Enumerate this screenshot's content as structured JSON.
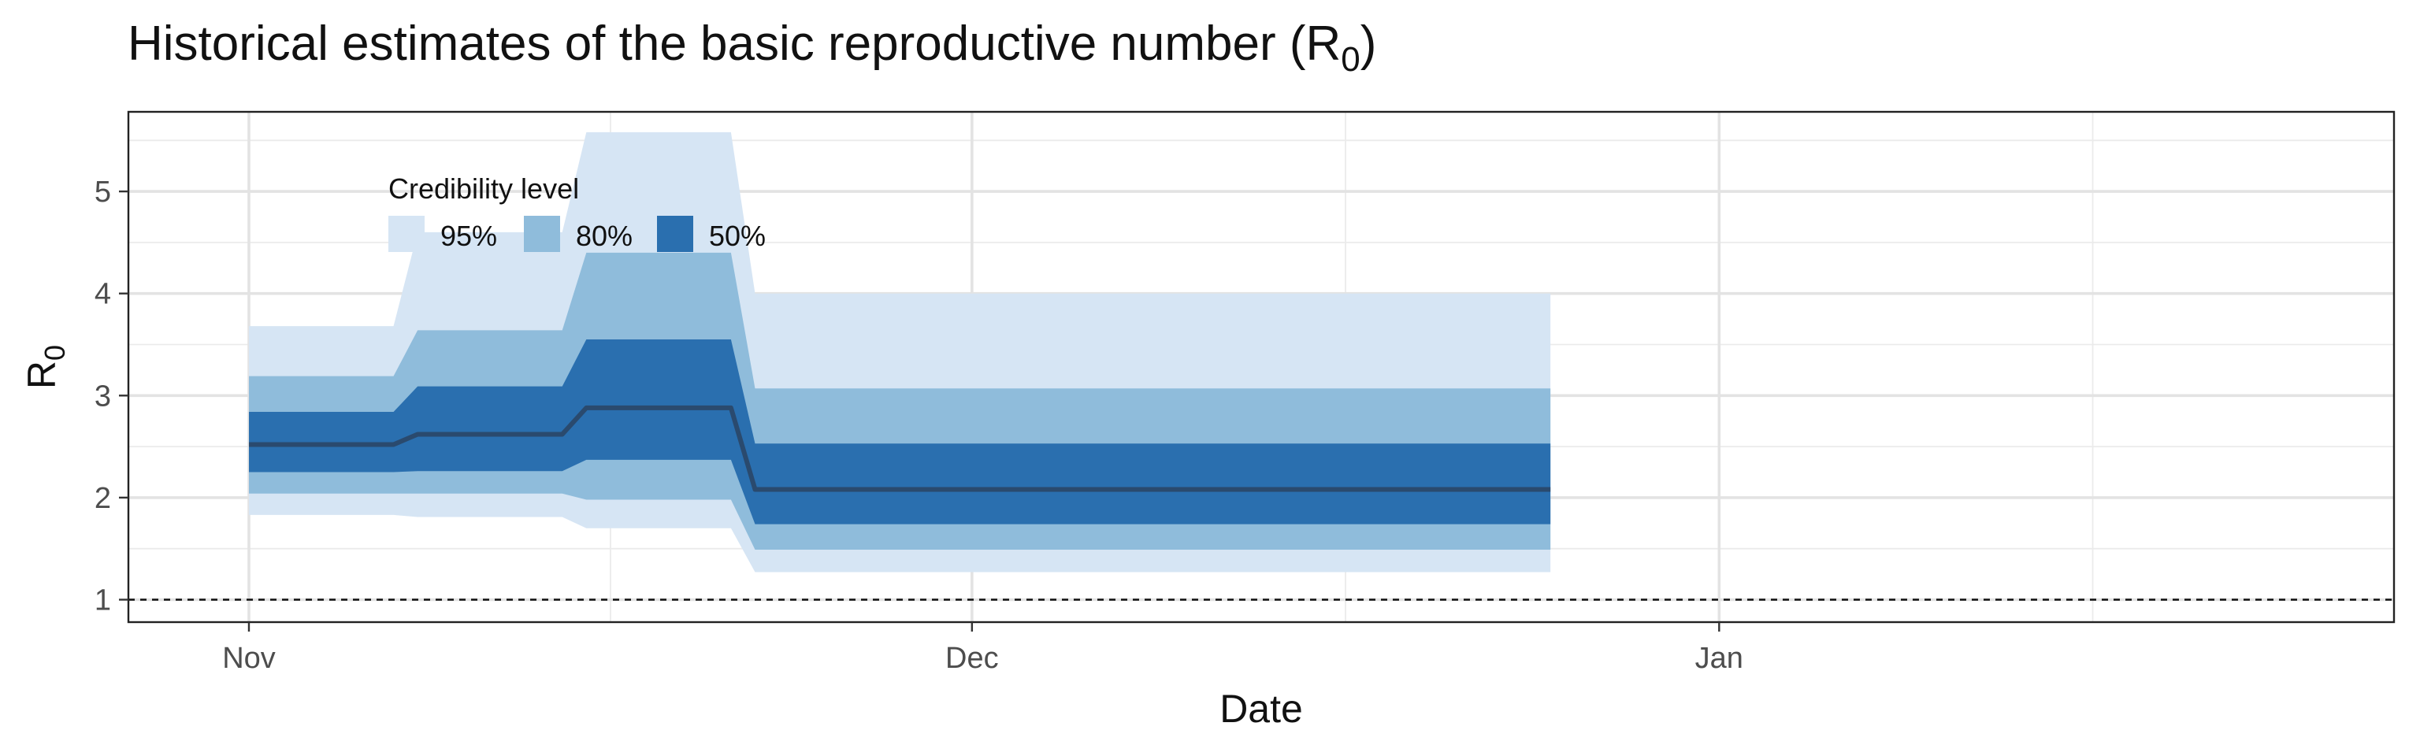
{
  "chart_data": {
    "type": "area",
    "title": "Historical estimates of the basic reproductive number (R",
    "title_subscript": "0",
    "title_suffix": ")",
    "xlabel": "Date",
    "ylabel": "R",
    "ylabel_subscript": "0",
    "x_ticks": [
      {
        "label": "Nov",
        "date": "2020-11-01"
      },
      {
        "label": "Dec",
        "date": "2020-12-01"
      },
      {
        "label": "Jan",
        "date": "2021-01-01"
      }
    ],
    "xlim": [
      "2020-10-27",
      "2021-01-29"
    ],
    "y_ticks": [
      1,
      2,
      3,
      4,
      5
    ],
    "ylim": [
      0.78,
      5.78
    ],
    "grid": true,
    "reference_line": {
      "y": 1,
      "style": "dashed"
    },
    "legend": {
      "title": "Credibility level",
      "placement": "top-left",
      "items": [
        {
          "label": "95%",
          "color": "#d6e5f4"
        },
        {
          "label": "80%",
          "color": "#8fbcdb"
        },
        {
          "label": "50%",
          "color": "#2a6faf"
        }
      ]
    },
    "colors": {
      "median_line": "#2a4a6e",
      "ci95": "#d6e5f4",
      "ci80": "#8fbcdb",
      "ci50": "#2a6faf"
    },
    "series": [
      {
        "x": [
          "2020-11-01",
          "2020-11-07",
          "2020-11-08",
          "2020-11-14",
          "2020-11-15",
          "2020-11-21",
          "2020-11-22",
          "2020-12-25"
        ],
        "median": [
          2.52,
          2.52,
          2.62,
          2.62,
          2.88,
          2.88,
          2.08,
          2.08
        ],
        "lower_95": [
          1.83,
          1.83,
          1.81,
          1.81,
          1.7,
          1.7,
          1.27,
          1.27
        ],
        "upper_95": [
          3.68,
          3.68,
          4.6,
          4.6,
          5.58,
          5.58,
          4.0,
          4.0
        ],
        "lower_80": [
          2.04,
          2.04,
          2.04,
          2.04,
          1.98,
          1.98,
          1.49,
          1.49
        ],
        "upper_80": [
          3.19,
          3.19,
          3.64,
          3.64,
          4.4,
          4.4,
          3.07,
          3.07
        ],
        "lower_50": [
          2.25,
          2.25,
          2.26,
          2.26,
          2.37,
          2.37,
          1.74,
          1.74
        ],
        "upper_50": [
          2.84,
          2.84,
          3.09,
          3.09,
          3.55,
          3.55,
          2.53,
          2.53
        ]
      }
    ]
  }
}
